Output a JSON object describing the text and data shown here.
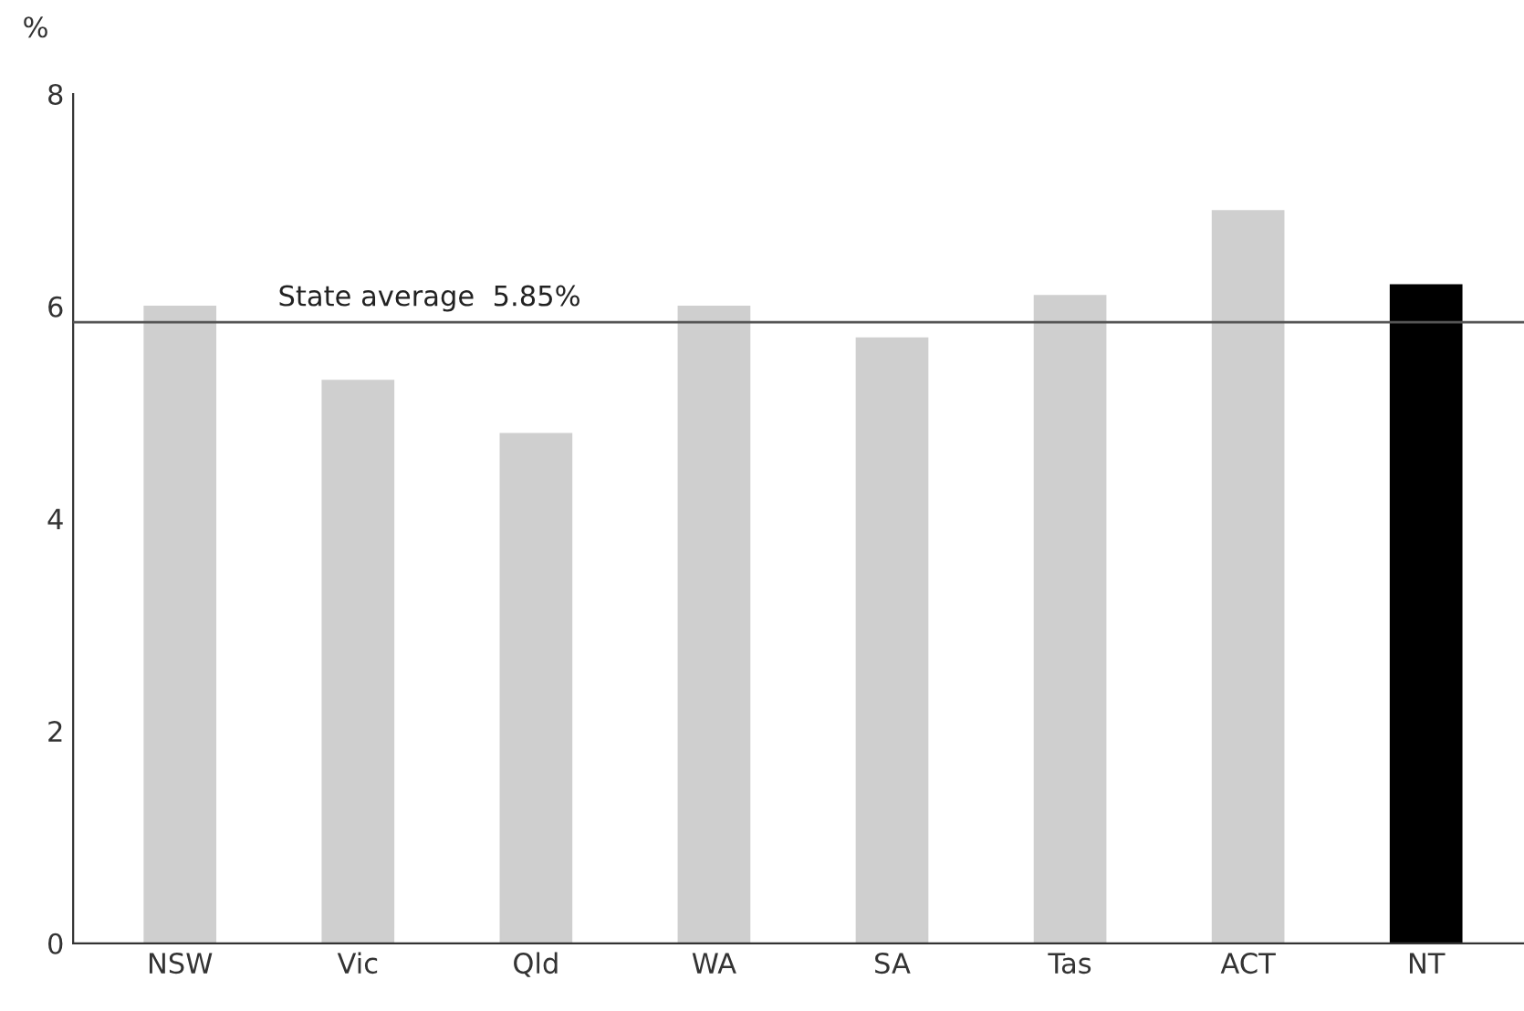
{
  "chart_data": {
    "type": "bar",
    "ylabel": "%",
    "categories": [
      "NSW",
      "Vic",
      "Qld",
      "WA",
      "SA",
      "Tas",
      "ACT",
      "NT"
    ],
    "values": [
      6.0,
      5.3,
      4.8,
      6.0,
      5.7,
      6.1,
      6.9,
      6.2
    ],
    "colors": [
      "#cfcfcf",
      "#cfcfcf",
      "#cfcfcf",
      "#cfcfcf",
      "#cfcfcf",
      "#cfcfcf",
      "#cfcfcf",
      "#000000"
    ],
    "ylim": [
      0,
      8
    ],
    "yticks": [
      0,
      2,
      4,
      6,
      8
    ],
    "grid": false,
    "legend": false,
    "ref_lines": [
      {
        "axis": "y",
        "value": 5.85,
        "label": "State average  5.85%",
        "color": "#555555"
      }
    ]
  }
}
